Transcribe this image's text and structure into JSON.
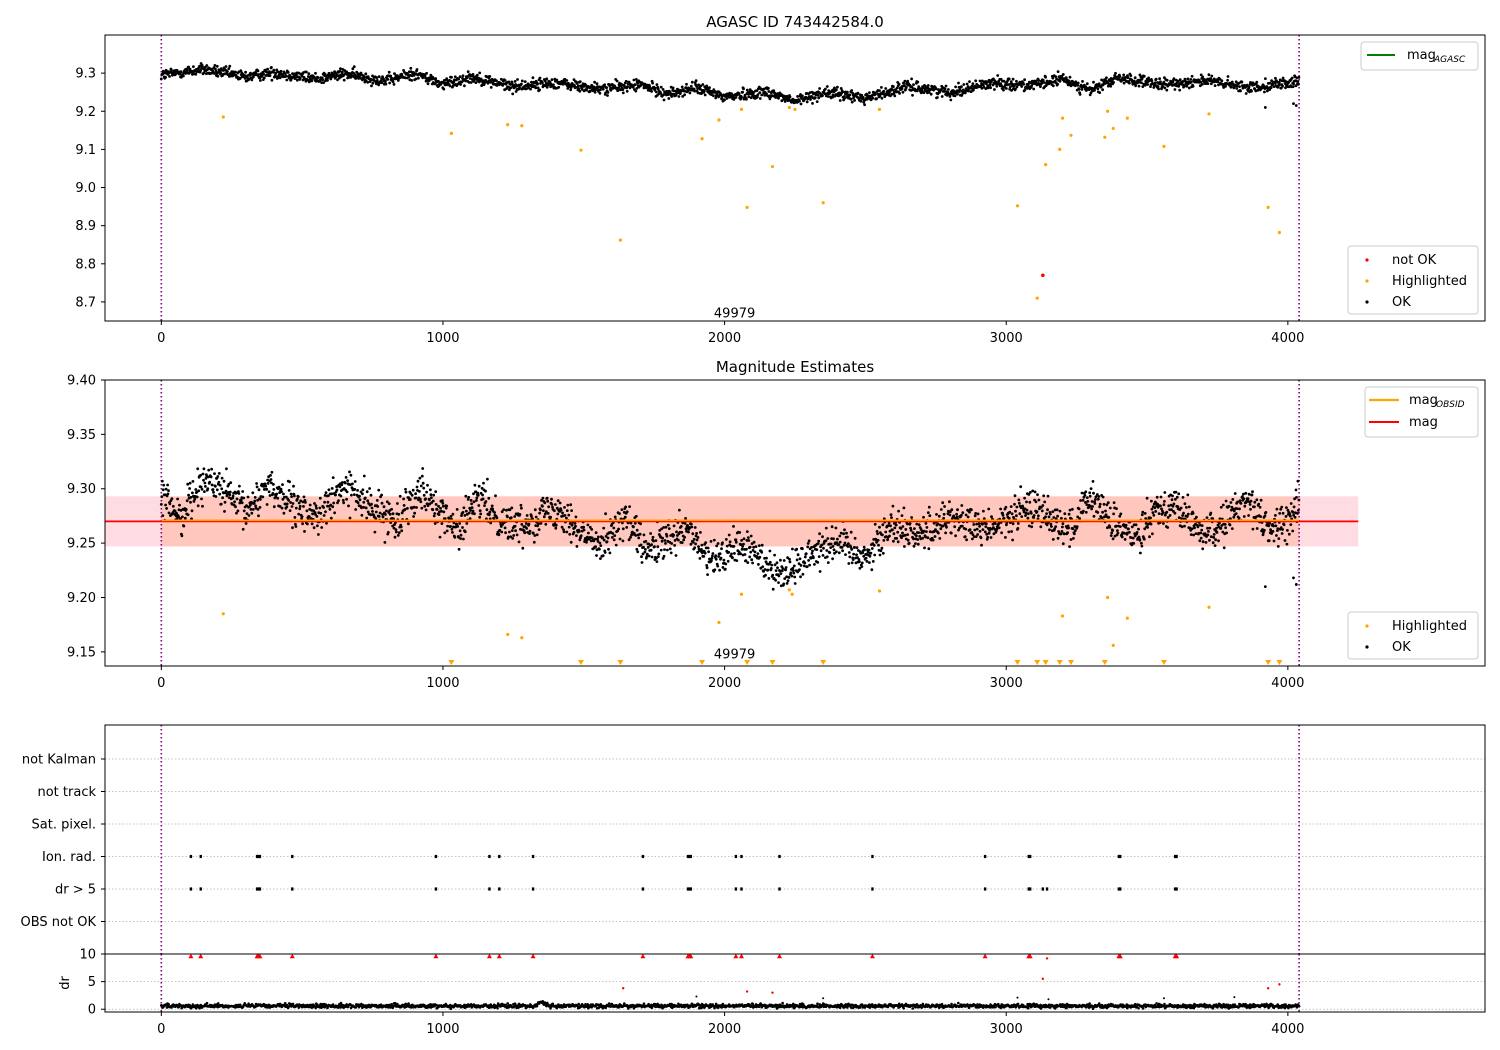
{
  "chart_data": [
    {
      "type": "scatter",
      "title": "AGASC ID 743442584.0",
      "xlim": [
        -200,
        4700
      ],
      "ylim": [
        8.65,
        9.4
      ],
      "xticks": [
        0,
        1000,
        2000,
        3000,
        4000
      ],
      "yticks": [
        8.7,
        8.8,
        8.9,
        9.0,
        9.1,
        9.2,
        9.3
      ],
      "ytick_labels": [
        "8.7",
        "8.8",
        "8.9",
        "9.0",
        "9.1",
        "9.2",
        "9.3"
      ],
      "obsid_bounds": [
        0,
        4040
      ],
      "obsid_label": "49979",
      "obsid_label_position": [
        2000,
        8.67
      ],
      "line_legend": [
        {
          "name": "mag",
          "subscript": "AGASC",
          "color": "#008000"
        }
      ],
      "legend": [
        {
          "name": "not OK",
          "color": "#ff0000"
        },
        {
          "name": "Highlighted",
          "color": "#ffa500"
        },
        {
          "name": "OK",
          "color": "#000000"
        }
      ],
      "ok_trend": {
        "x": [
          0,
          150,
          300,
          400,
          550,
          650,
          800,
          900,
          1000,
          1100,
          1250,
          1400,
          1550,
          1700,
          1800,
          1900,
          2000,
          2150,
          2250,
          2350,
          2500,
          2650,
          2800,
          2950,
          3100,
          3200,
          3300,
          3400,
          3550,
          3700,
          3850,
          4040
        ],
        "y": [
          9.295,
          9.31,
          9.29,
          9.302,
          9.285,
          9.298,
          9.28,
          9.3,
          9.27,
          9.29,
          9.265,
          9.275,
          9.258,
          9.27,
          9.245,
          9.262,
          9.238,
          9.252,
          9.225,
          9.25,
          9.235,
          9.265,
          9.25,
          9.275,
          9.268,
          9.285,
          9.255,
          9.288,
          9.268,
          9.282,
          9.262,
          9.278
        ]
      },
      "ok_outliers": [
        [
          3920,
          9.21
        ],
        [
          4020,
          9.22
        ],
        [
          4030,
          9.215
        ]
      ],
      "highlighted": [
        [
          220,
          9.185
        ],
        [
          1030,
          9.142
        ],
        [
          1230,
          9.165
        ],
        [
          1280,
          9.162
        ],
        [
          1490,
          9.098
        ],
        [
          1630,
          8.862
        ],
        [
          1920,
          9.128
        ],
        [
          1980,
          9.177
        ],
        [
          2060,
          9.205
        ],
        [
          2080,
          8.948
        ],
        [
          2170,
          9.055
        ],
        [
          2230,
          9.21
        ],
        [
          2250,
          9.205
        ],
        [
          2350,
          8.96
        ],
        [
          2550,
          9.205
        ],
        [
          3040,
          8.952
        ],
        [
          3110,
          8.71
        ],
        [
          3140,
          9.06
        ],
        [
          3190,
          9.1
        ],
        [
          3200,
          9.182
        ],
        [
          3230,
          9.137
        ],
        [
          3350,
          9.132
        ],
        [
          3360,
          9.2
        ],
        [
          3380,
          9.155
        ],
        [
          3430,
          9.182
        ],
        [
          3560,
          9.108
        ],
        [
          3720,
          9.193
        ],
        [
          3930,
          8.948
        ],
        [
          3970,
          8.882
        ]
      ],
      "not_ok": [
        [
          3130,
          8.77
        ]
      ]
    },
    {
      "type": "scatter",
      "title": "Magnitude Estimates",
      "xlim": [
        -200,
        4700
      ],
      "ylim": [
        9.137,
        9.4
      ],
      "xticks": [
        0,
        1000,
        2000,
        3000,
        4000
      ],
      "yticks": [
        9.15,
        9.2,
        9.25,
        9.3,
        9.35,
        9.4
      ],
      "ytick_labels": [
        "9.15",
        "9.20",
        "9.25",
        "9.30",
        "9.35",
        "9.40"
      ],
      "obsid_bounds": [
        0,
        4040
      ],
      "obsid_label": "49979",
      "obsid_label_position": [
        2000,
        9.142
      ],
      "mag": 9.27,
      "mag_band": [
        9.247,
        9.293
      ],
      "mag_band_xrange": [
        -200,
        4250
      ],
      "mag_obsid": 9.271,
      "mag_obsid_band": [
        9.247,
        9.293
      ],
      "mag_obsid_xrange": [
        0,
        4040
      ],
      "line_legend": [
        {
          "name": "mag",
          "subscript": "OBSID",
          "color": "#ffa500"
        },
        {
          "name": "mag",
          "subscript": "",
          "color": "#ff0000"
        }
      ],
      "legend": [
        {
          "name": "Highlighted",
          "color": "#ffa500"
        },
        {
          "name": "OK",
          "color": "#000000"
        }
      ],
      "ok_trend": {
        "x": [
          0,
          70,
          150,
          220,
          300,
          380,
          480,
          560,
          650,
          750,
          830,
          920,
          1000,
          1050,
          1130,
          1200,
          1280,
          1350,
          1420,
          1500,
          1560,
          1650,
          1720,
          1800,
          1870,
          1950,
          2050,
          2100,
          2200,
          2250,
          2320,
          2400,
          2500,
          2600,
          2700,
          2800,
          2900,
          2980,
          3050,
          3100,
          3150,
          3230,
          3300,
          3400,
          3460,
          3530,
          3600,
          3670,
          3720,
          3800,
          3860,
          3930,
          4000,
          4040
        ],
        "y": [
          9.29,
          9.275,
          9.31,
          9.298,
          9.278,
          9.305,
          9.28,
          9.275,
          9.302,
          9.282,
          9.27,
          9.302,
          9.275,
          9.262,
          9.292,
          9.272,
          9.265,
          9.278,
          9.282,
          9.255,
          9.252,
          9.272,
          9.242,
          9.252,
          9.262,
          9.232,
          9.248,
          9.242,
          9.222,
          9.228,
          9.245,
          9.252,
          9.238,
          9.268,
          9.258,
          9.275,
          9.262,
          9.268,
          9.278,
          9.285,
          9.275,
          9.262,
          9.292,
          9.262,
          9.258,
          9.282,
          9.285,
          9.265,
          9.258,
          9.275,
          9.292,
          9.262,
          9.27,
          9.285
        ]
      },
      "ok_outliers": [
        [
          3920,
          9.21
        ],
        [
          4020,
          9.218
        ],
        [
          4030,
          9.212
        ]
      ],
      "highlighted": [
        [
          220,
          9.185
        ],
        [
          1230,
          9.166
        ],
        [
          1280,
          9.163
        ],
        [
          1980,
          9.177
        ],
        [
          2060,
          9.203
        ],
        [
          2230,
          9.207
        ],
        [
          2240,
          9.203
        ],
        [
          2550,
          9.206
        ],
        [
          3200,
          9.183
        ],
        [
          3360,
          9.2
        ],
        [
          3380,
          9.156
        ],
        [
          3430,
          9.181
        ],
        [
          3720,
          9.191
        ]
      ],
      "highlighted_bottom_markers": [
        1030,
        1490,
        1630,
        1920,
        2080,
        2170,
        2350,
        3040,
        3110,
        3140,
        3190,
        3230,
        3350,
        3560,
        3930,
        3970
      ]
    },
    {
      "type": "scatter",
      "title": "",
      "xlim": [
        -200,
        4700
      ],
      "xticks": [
        0,
        1000,
        2000,
        3000,
        4000
      ],
      "obsid_bounds": [
        0,
        4040
      ],
      "flag_rows": [
        "not Kalman",
        "not track",
        "Sat. pixel.",
        "Ion. rad.",
        "dr > 5",
        "OBS not OK"
      ],
      "flag_hits": {
        "Ion. rad.": [
          105,
          140,
          340,
          345,
          350,
          465,
          975,
          1165,
          1200,
          1320,
          1710,
          1870,
          1875,
          1880,
          2040,
          2060,
          2195,
          2525,
          2925,
          3080,
          3085,
          3400,
          3405,
          3600,
          3605
        ],
        "dr > 5": [
          105,
          140,
          340,
          345,
          350,
          465,
          975,
          1165,
          1200,
          1320,
          1710,
          1870,
          1875,
          1880,
          2040,
          2060,
          2195,
          2525,
          2925,
          3080,
          3085,
          3130,
          3145,
          3400,
          3405,
          3600,
          3605
        ]
      }
    },
    {
      "type": "scatter",
      "title": "",
      "ylabel": "dr",
      "xlim": [
        -200,
        4700
      ],
      "ylim": [
        -0.5,
        10
      ],
      "xticks": [
        0,
        1000,
        2000,
        3000,
        4000
      ],
      "yticks": [
        0,
        5,
        10
      ],
      "ytick_labels": [
        "0",
        "5",
        "10"
      ],
      "obsid_bounds": [
        0,
        4040
      ],
      "ok_level": 0.6,
      "ok_bump": [
        1350,
        1.3
      ],
      "not_ok_clipped_x": [
        105,
        140,
        340,
        345,
        350,
        465,
        975,
        1165,
        1200,
        1320,
        1710,
        1870,
        1875,
        1880,
        2040,
        2060,
        2195,
        2525,
        2925,
        3080,
        3085,
        3400,
        3405,
        3600,
        3605
      ],
      "not_ok": [
        [
          1640,
          3.8
        ],
        [
          2080,
          3.2
        ],
        [
          2170,
          3.0
        ],
        [
          3130,
          5.5
        ],
        [
          3145,
          9.2
        ],
        [
          3930,
          3.8
        ],
        [
          3970,
          4.5
        ]
      ],
      "ok_scatter": [
        [
          1900,
          2.3
        ],
        [
          2350,
          2.0
        ],
        [
          3040,
          2.1
        ],
        [
          3150,
          1.8
        ],
        [
          3560,
          2.0
        ],
        [
          3810,
          2.2
        ]
      ]
    }
  ]
}
